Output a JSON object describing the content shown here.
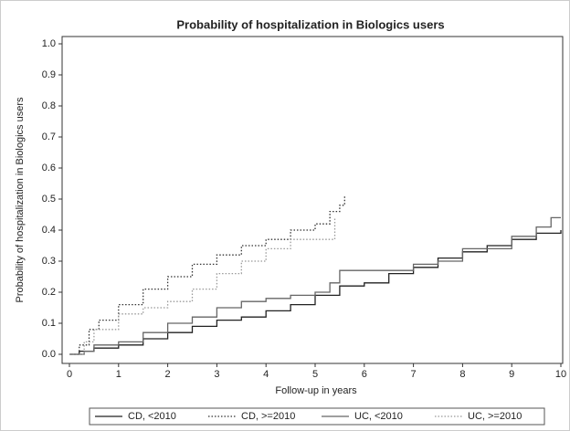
{
  "chart_data": {
    "type": "line",
    "drawstyle": "steps-post",
    "title": "Probability of hospitalization in Biologics users",
    "xlabel": "Follow-up in years",
    "ylabel": "Probability of hospitalization in Biologics users",
    "xlim": [
      0,
      10
    ],
    "ylim": [
      0,
      1
    ],
    "xticks": [
      0,
      1,
      2,
      3,
      4,
      5,
      6,
      7,
      8,
      9,
      10
    ],
    "yticks": [
      {
        "value": 0,
        "label": "0.0"
      },
      0.1,
      0.2,
      0.3,
      0.4,
      0.5,
      0.6,
      0.7,
      0.8,
      0.9,
      {
        "value": 1,
        "label": "1.0"
      }
    ],
    "legend": "bottom",
    "series": [
      {
        "name": "CD, <2010",
        "color": "#222222",
        "dash": "solid",
        "x": [
          0,
          0.2,
          0.5,
          1,
          1.5,
          2,
          2.5,
          3,
          3.5,
          4,
          4.5,
          5,
          5.5,
          6,
          6.5,
          7,
          7.5,
          8,
          8.5,
          9,
          9.5,
          10
        ],
        "values": [
          0,
          0.01,
          0.02,
          0.03,
          0.05,
          0.07,
          0.09,
          0.11,
          0.12,
          0.14,
          0.16,
          0.19,
          0.22,
          0.23,
          0.26,
          0.28,
          0.31,
          0.33,
          0.35,
          0.37,
          0.39,
          0.4
        ]
      },
      {
        "name": "CD, >=2010",
        "color": "#333333",
        "dash": "dotted",
        "x": [
          0,
          0.2,
          0.4,
          0.6,
          1,
          1.5,
          2,
          2.5,
          3,
          3.5,
          4,
          4.5,
          5,
          5.3,
          5.5,
          5.6
        ],
        "values": [
          0,
          0.03,
          0.08,
          0.11,
          0.16,
          0.21,
          0.25,
          0.29,
          0.32,
          0.35,
          0.37,
          0.4,
          0.42,
          0.46,
          0.48,
          0.51
        ]
      },
      {
        "name": "UC, <2010",
        "color": "#666666",
        "dash": "solid",
        "x": [
          0,
          0.3,
          0.5,
          1,
          1.5,
          2,
          2.5,
          3,
          3.5,
          4,
          4.5,
          5,
          5.3,
          5.5,
          7,
          7.5,
          8,
          9,
          9.5,
          9.8,
          10
        ],
        "values": [
          0,
          0.01,
          0.03,
          0.04,
          0.07,
          0.1,
          0.12,
          0.15,
          0.17,
          0.18,
          0.19,
          0.2,
          0.23,
          0.27,
          0.29,
          0.3,
          0.34,
          0.38,
          0.41,
          0.44,
          0.44
        ]
      },
      {
        "name": "UC, >=2010",
        "color": "#999999",
        "dash": "dotted",
        "x": [
          0,
          0.3,
          0.5,
          1,
          1.5,
          2,
          2.5,
          3,
          3.5,
          4,
          4.5,
          5.4
        ],
        "values": [
          0,
          0.04,
          0.08,
          0.13,
          0.15,
          0.17,
          0.21,
          0.26,
          0.3,
          0.34,
          0.37,
          0.44
        ]
      }
    ]
  }
}
